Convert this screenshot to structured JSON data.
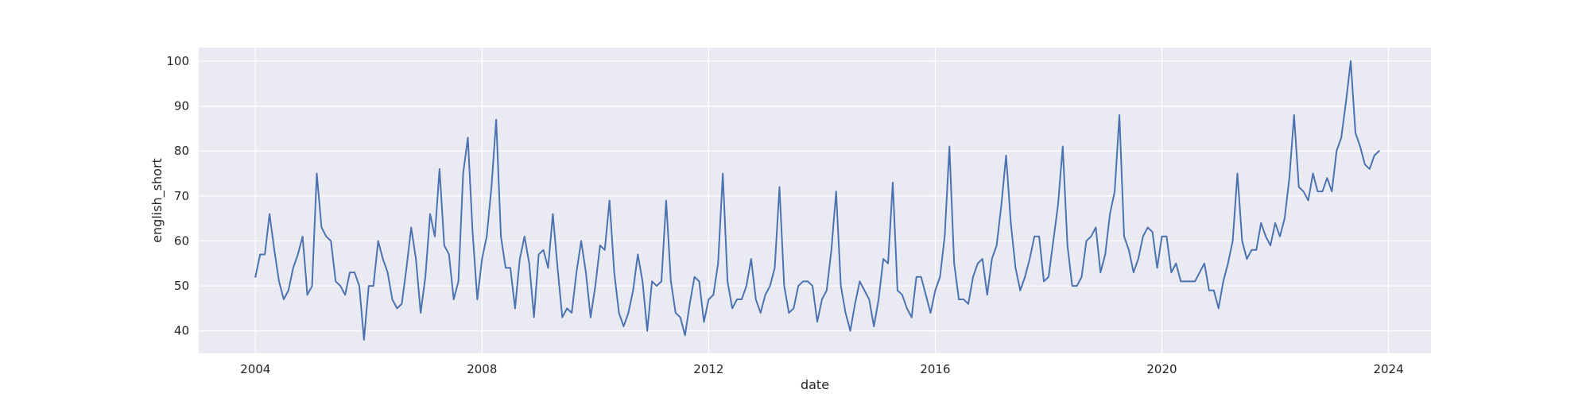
{
  "chart_data": {
    "type": "line",
    "title": "",
    "xlabel": "date",
    "ylabel": "english_short",
    "xlim": [
      "2003-01-01",
      "2024-10-01"
    ],
    "ylim": [
      35,
      103
    ],
    "grid": true,
    "legend": "none",
    "x_ticks": [
      "2004",
      "2008",
      "2012",
      "2016",
      "2020",
      "2024"
    ],
    "y_ticks": [
      40,
      50,
      60,
      70,
      80,
      90,
      100
    ],
    "x_start": "2004-01",
    "x_frequency": "monthly",
    "colors": {
      "background": "#eaeaf2",
      "grid": "#ffffff",
      "line": "#4c72b0",
      "text": "#262626"
    },
    "series": [
      {
        "name": "",
        "values": [
          52,
          57,
          57,
          66,
          58,
          51,
          47,
          49,
          54,
          57,
          61,
          48,
          50,
          75,
          63,
          61,
          60,
          51,
          50,
          48,
          53,
          53,
          50,
          38,
          50,
          50,
          60,
          56,
          53,
          47,
          45,
          46,
          54,
          63,
          56,
          44,
          52,
          66,
          61,
          76,
          59,
          57,
          47,
          51,
          75,
          83,
          62,
          47,
          56,
          61,
          72,
          87,
          61,
          54,
          54,
          45,
          56,
          61,
          55,
          43,
          57,
          58,
          54,
          66,
          54,
          43,
          45,
          44,
          53,
          60,
          53,
          43,
          50,
          59,
          58,
          69,
          53,
          44,
          41,
          44,
          49,
          57,
          51,
          40,
          51,
          50,
          51,
          69,
          51,
          44,
          43,
          39,
          46,
          52,
          51,
          42,
          47,
          48,
          55,
          75,
          51,
          45,
          47,
          47,
          50,
          56,
          47,
          44,
          48,
          50,
          54,
          72,
          50,
          44,
          45,
          50,
          51,
          51,
          50,
          42,
          47,
          49,
          58,
          71,
          50,
          44,
          40,
          46,
          51,
          49,
          47,
          41,
          47,
          56,
          55,
          73,
          49,
          48,
          45,
          43,
          52,
          52,
          48,
          44,
          49,
          52,
          61,
          81,
          55,
          47,
          47,
          46,
          52,
          55,
          56,
          48,
          56,
          59,
          68,
          79,
          64,
          54,
          49,
          52,
          56,
          61,
          61,
          51,
          52,
          60,
          68,
          81,
          59,
          50,
          50,
          52,
          60,
          61,
          63,
          53,
          57,
          66,
          71,
          88,
          61,
          58,
          53,
          56,
          61,
          63,
          62,
          54,
          61,
          61,
          53,
          55,
          51,
          51,
          51,
          51,
          53,
          55,
          49,
          49,
          45,
          51,
          55,
          60,
          75,
          60,
          56,
          58,
          58,
          64,
          61,
          59,
          64,
          61,
          65,
          74,
          88,
          72,
          71,
          69,
          75,
          71,
          71,
          74,
          71,
          80,
          83,
          91,
          100,
          84,
          81,
          77,
          76,
          79,
          80
        ]
      }
    ]
  }
}
